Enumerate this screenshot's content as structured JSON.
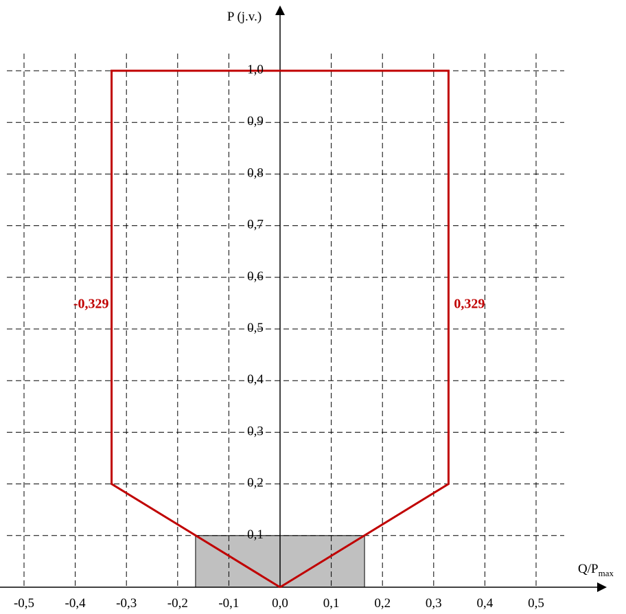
{
  "chart_data": {
    "type": "line",
    "ylabel": "P (j.v.)",
    "xlabel_main": "Q/P",
    "xlabel_sub": "max",
    "xlim": [
      -0.5,
      0.5
    ],
    "ylim": [
      0.0,
      1.0
    ],
    "grid": true,
    "x_ticks": [
      -0.5,
      -0.4,
      -0.3,
      -0.2,
      -0.1,
      0.0,
      0.1,
      0.2,
      0.3,
      0.4,
      0.5
    ],
    "x_tick_labels": [
      "-0,5",
      "-0,4",
      "-0,3",
      "-0,2",
      "-0,1",
      "0,0",
      "0,1",
      "0,2",
      "0,3",
      "0,4",
      "0,5"
    ],
    "y_ticks": [
      0.1,
      0.2,
      0.3,
      0.4,
      0.5,
      0.6,
      0.7,
      0.8,
      0.9,
      1.0
    ],
    "y_tick_labels": [
      "0,1",
      "0,2",
      "0,3",
      "0,4",
      "0,5",
      "0,6",
      "0,7",
      "0,8",
      "0,9",
      "1,0"
    ],
    "series": [
      {
        "color": "#c00000",
        "points": [
          [
            0.0,
            0.0
          ],
          [
            -0.329,
            0.2
          ],
          [
            -0.329,
            1.0
          ],
          [
            0.329,
            1.0
          ],
          [
            0.329,
            0.2
          ],
          [
            0.0,
            0.0
          ]
        ]
      }
    ],
    "shaded_region": {
      "x": [
        -0.165,
        0.165
      ],
      "y": [
        0.0,
        0.1
      ],
      "color": "#c0c0c0"
    },
    "annotations": [
      {
        "text": "-0,329",
        "x": -0.329,
        "y": 0.55,
        "color": "#c00000"
      },
      {
        "text": "0,329",
        "x": 0.329,
        "y": 0.55,
        "color": "#c00000"
      }
    ]
  }
}
